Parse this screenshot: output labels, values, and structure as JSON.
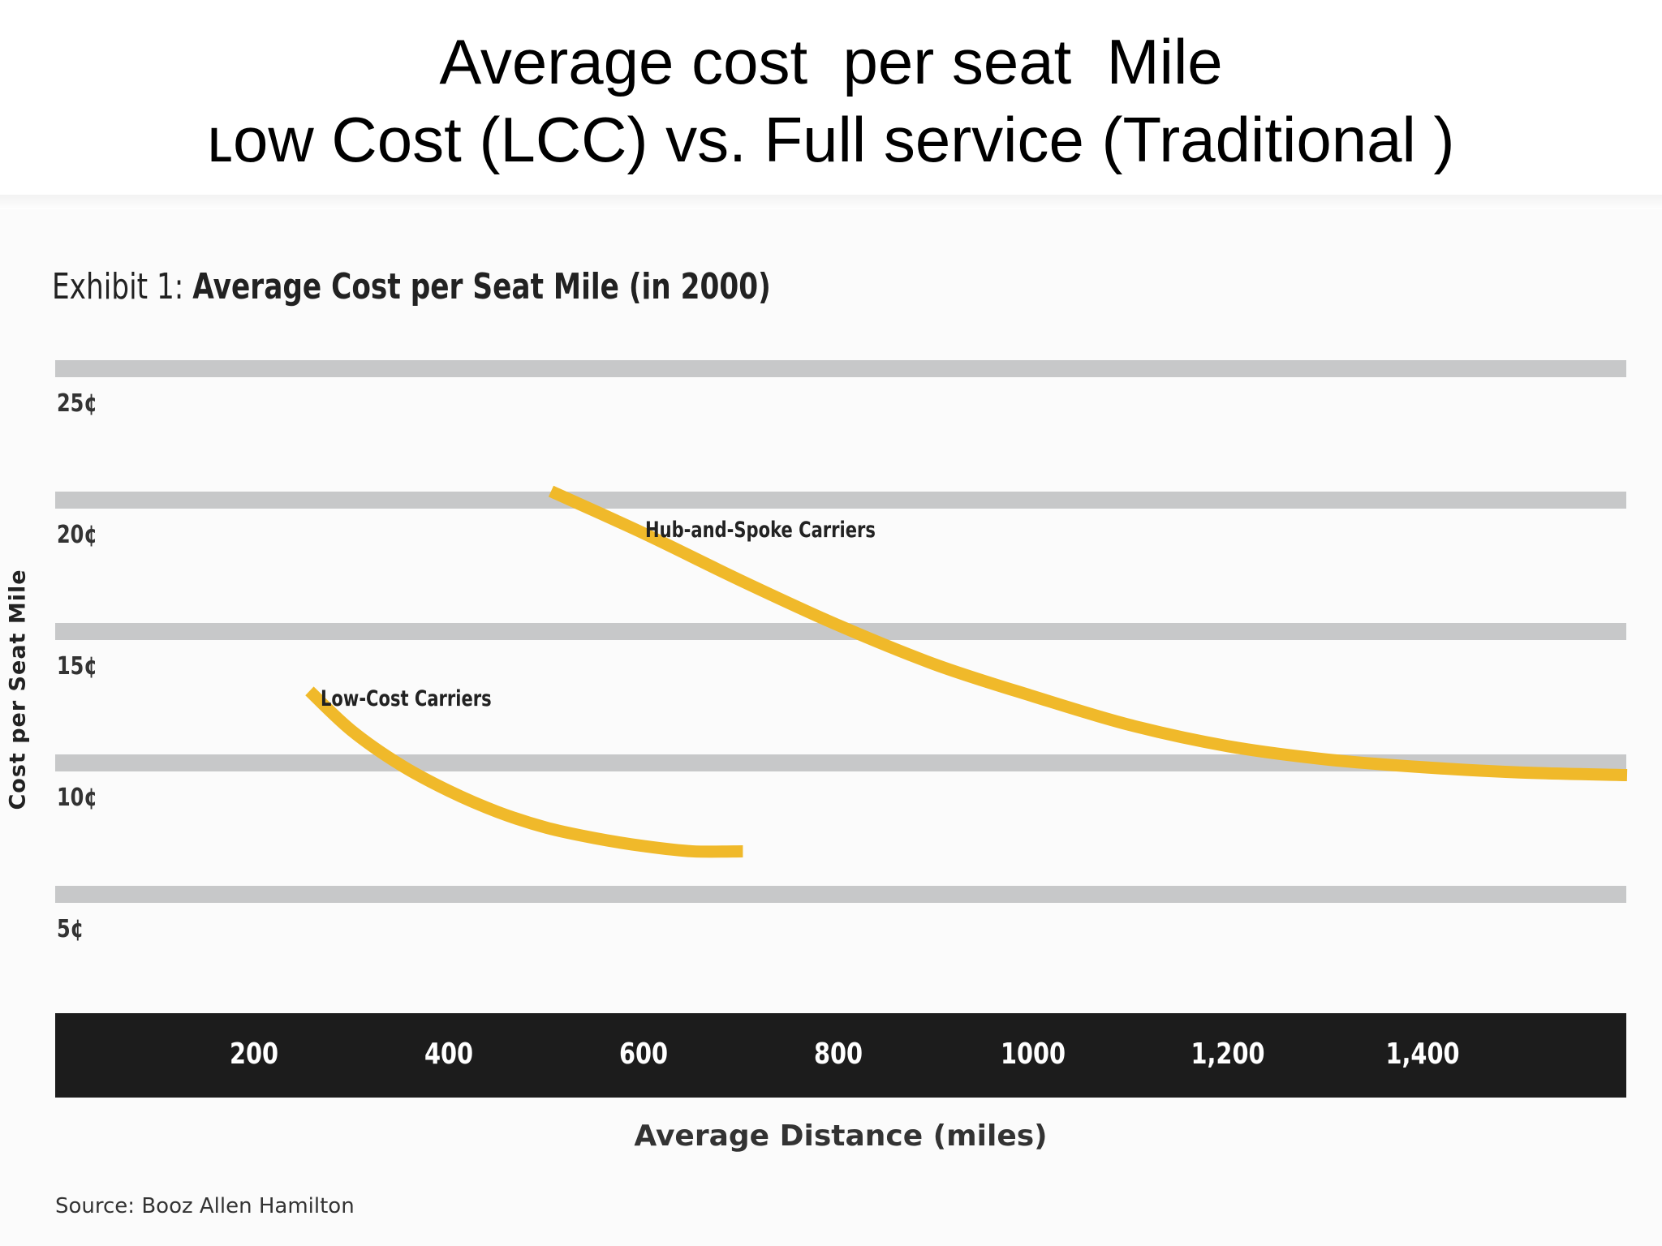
{
  "slide": {
    "title_line1": "Average cost  per seat  Mile",
    "title_line2": "ʟow Cost (LCC) vs. Full service (Traditional )"
  },
  "chart_data": {
    "type": "line",
    "exhibit_prefix": "Exhibit 1: ",
    "title": "Average Cost per Seat Mile (in 2000)",
    "xlabel": "Average Distance (miles)",
    "ylabel": "Cost per Seat Mile",
    "source": "Source: Booz Allen Hamilton",
    "x_ticks": [
      {
        "value": 200,
        "label": "200"
      },
      {
        "value": 400,
        "label": "400"
      },
      {
        "value": 600,
        "label": "600"
      },
      {
        "value": 800,
        "label": "800"
      },
      {
        "value": 1000,
        "label": "1000"
      },
      {
        "value": 1200,
        "label": "1,200"
      },
      {
        "value": 1400,
        "label": "1,400"
      }
    ],
    "y_ticks": [
      {
        "value": 25,
        "label": "25¢"
      },
      {
        "value": 20,
        "label": "20¢"
      },
      {
        "value": 15,
        "label": "15¢"
      },
      {
        "value": 10,
        "label": "10¢"
      },
      {
        "value": 5,
        "label": "5¢"
      }
    ],
    "xlim": [
      0,
      1610
    ],
    "ylim": [
      5,
      25
    ],
    "grid": true,
    "series": [
      {
        "name": "Low-Cost Carriers",
        "color": "#f0b92a",
        "x": [
          257,
          300,
          350,
          400,
          450,
          500,
          550,
          600,
          650,
          702
        ],
        "y": [
          13.0,
          11.5,
          10.2,
          9.2,
          8.4,
          7.8,
          7.4,
          7.1,
          6.9,
          6.9
        ]
      },
      {
        "name": "Hub-and-Spoke Carriers",
        "color": "#f0b92a",
        "x": [
          505,
          600,
          700,
          800,
          900,
          1000,
          1100,
          1200,
          1300,
          1400,
          1500,
          1610
        ],
        "y": [
          20.6,
          19.0,
          17.2,
          15.5,
          14.0,
          12.8,
          11.7,
          10.9,
          10.4,
          10.1,
          9.9,
          9.8
        ]
      }
    ]
  }
}
